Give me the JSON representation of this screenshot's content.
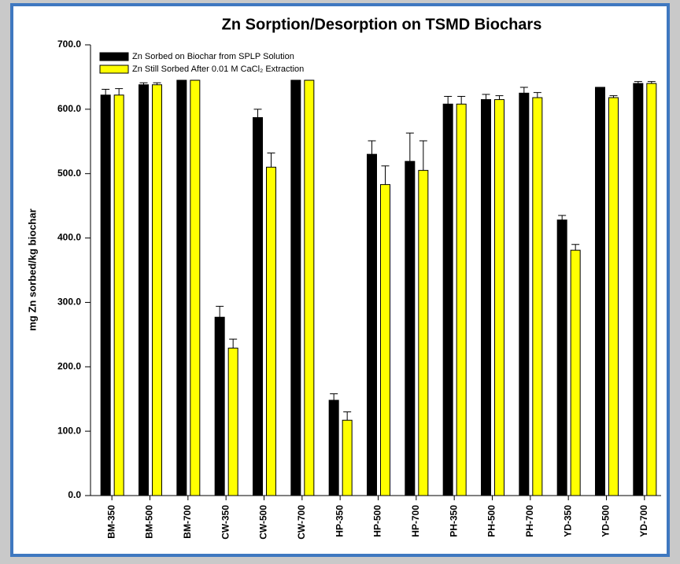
{
  "chart_data": {
    "type": "bar",
    "title": "Zn Sorption/Desorption on TSMD Biochars",
    "y_label": "mg Zn sorbed/kg biochar",
    "categories": [
      "BM-350",
      "BM-500",
      "BM-700",
      "CW-350",
      "CW-500",
      "CW-700",
      "HP-350",
      "HP-500",
      "HP-700",
      "PH-350",
      "PH-500",
      "PH-700",
      "YD-350",
      "YD-500",
      "YD-700"
    ],
    "series": [
      {
        "name": "Zn Sorbed on Biochar from SPLP Solution",
        "color": "#000000",
        "values": [
          622,
          638,
          645,
          277,
          587,
          645,
          148,
          530,
          519,
          608,
          615,
          625,
          428,
          634,
          640
        ],
        "errors": [
          9,
          3,
          0,
          17,
          13,
          0,
          10,
          21,
          44,
          12,
          8,
          9,
          7,
          0,
          3
        ]
      },
      {
        "name": "Zn Still Sorbed After 0.01 M CaCl₂ Extraction",
        "color": "#ffff00",
        "values": [
          622,
          638,
          645,
          229,
          510,
          645,
          117,
          483,
          505,
          608,
          615,
          618,
          381,
          618,
          640
        ],
        "errors": [
          10,
          3,
          0,
          14,
          22,
          0,
          13,
          29,
          46,
          12,
          6,
          8,
          9,
          3,
          3
        ]
      }
    ],
    "ylim": [
      0,
      700
    ],
    "yticks": [
      {
        "value": 0,
        "label": "0.0"
      },
      {
        "value": 100,
        "label": "100.0"
      },
      {
        "value": 200,
        "label": "200.0"
      },
      {
        "value": 300,
        "label": "300.0"
      },
      {
        "value": 400,
        "label": "400.0"
      },
      {
        "value": 500,
        "label": "500.0"
      },
      {
        "value": 600,
        "label": "600.0"
      },
      {
        "value": 700,
        "label": "700.0"
      }
    ],
    "legend": "upper left",
    "grid": false
  }
}
